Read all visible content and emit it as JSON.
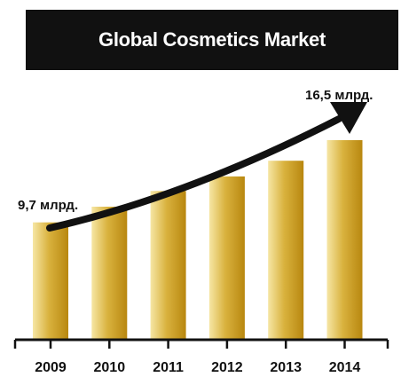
{
  "chart_data": {
    "type": "bar",
    "title": "Global Cosmetics Market",
    "categories": [
      "2009",
      "2010",
      "2011",
      "2012",
      "2013",
      "2014"
    ],
    "values": [
      9.7,
      11.0,
      12.3,
      13.5,
      14.8,
      16.5
    ],
    "ylim": [
      0,
      16.5
    ],
    "grid": false,
    "legend": "none",
    "annotations": {
      "start_label": "9,7 млрд.",
      "end_label": "16,5 млрд."
    },
    "colors": {
      "bar_light": "#f6e6a4",
      "bar_mid": "#d9b23e",
      "bar_dark": "#b8870f",
      "axis": "#111111",
      "arrow": "#111111",
      "banner": "#111111",
      "title_text": "#ffffff"
    }
  }
}
